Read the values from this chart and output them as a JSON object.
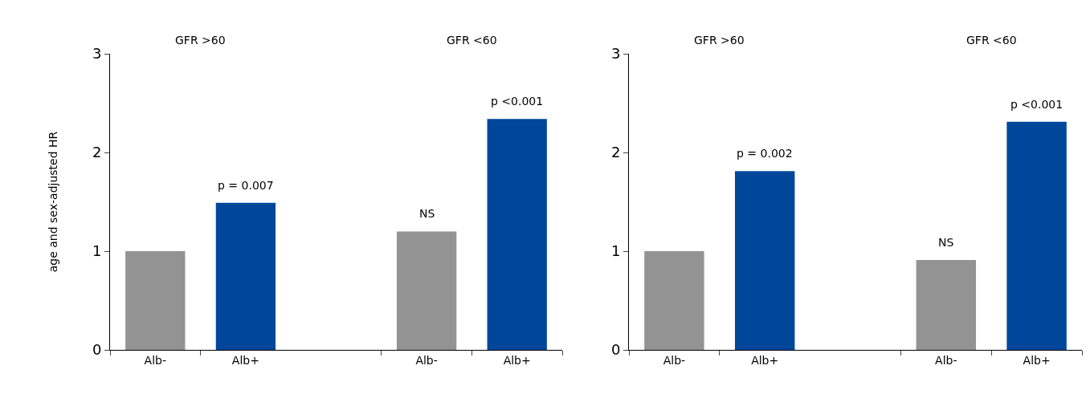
{
  "chart_data": [
    {
      "type": "bar",
      "ylabel": "age and sex-adjusted HR",
      "categories": [
        "Alb-",
        "Alb+",
        null,
        "Alb-",
        "Alb+"
      ],
      "colors": [
        "#939393",
        "#00479b",
        null,
        "#939393",
        "#00479b"
      ],
      "values": [
        1.0,
        1.49,
        null,
        1.2,
        2.34
      ],
      "annotations": [
        "GFR >60",
        "GFR <60",
        {
          "text": "p = 0.007",
          "x": "Alb+",
          "y": 1.49
        },
        {
          "text": "NS",
          "y": 1.2
        },
        {
          "text": "p <0.001",
          "y": 2.34
        }
      ],
      "ylim": [
        0,
        3
      ],
      "yticks": [
        0,
        1,
        2,
        3
      ]
    },
    {
      "type": "bar",
      "categories": [
        "Alb-",
        "Alb+",
        null,
        "Alb-",
        "Alb+"
      ],
      "colors": [
        "#939393",
        "#00479b",
        null,
        "#939393",
        "#00479b"
      ],
      "values": [
        1.0,
        1.81,
        null,
        0.91,
        2.31
      ],
      "annotations": [
        "GFR >60",
        "GFR <60",
        {
          "text": "p = 0.002",
          "x": "Alb+",
          "y": 1.81
        },
        {
          "text": "NS",
          "y": 0.91
        },
        {
          "text": "p <0.001",
          "y": 2.31
        }
      ],
      "ylim": [
        0,
        3
      ],
      "yticks": [
        0,
        1,
        2,
        3
      ]
    }
  ]
}
